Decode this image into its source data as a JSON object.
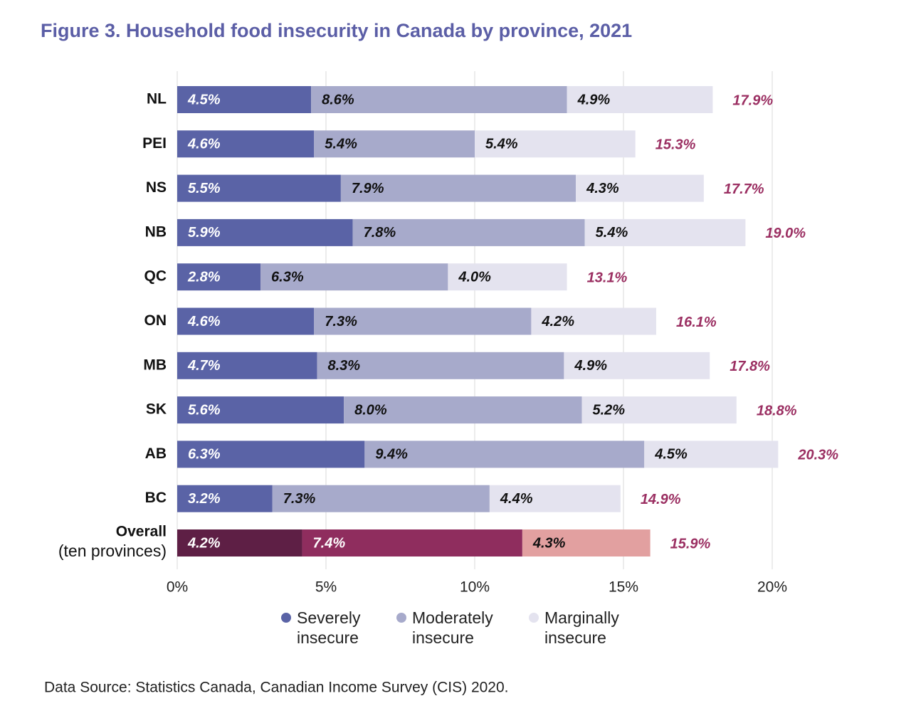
{
  "chart_data": {
    "type": "stacked-barh",
    "title": "Figure 3. Household food insecurity in Canada by province, 2021",
    "categories": [
      "NL",
      "PEI",
      "NS",
      "NB",
      "QC",
      "ON",
      "MB",
      "SK",
      "AB",
      "BC",
      "Overall"
    ],
    "category_note": "(ten provinces)",
    "series": [
      {
        "name": "Severely insecure",
        "color": "#5a63a6",
        "colors": [
          "#5a63a6",
          "#5a63a6",
          "#5a63a6",
          "#5a63a6",
          "#5a63a6",
          "#5a63a6",
          "#5a63a6",
          "#5a63a6",
          "#5a63a6",
          "#5a63a6",
          "#5e1f45"
        ],
        "values": [
          4.5,
          4.6,
          5.5,
          5.9,
          2.8,
          4.6,
          4.7,
          5.6,
          6.3,
          3.2,
          4.2
        ],
        "value_labels": [
          "4.5%",
          "4.6%",
          "5.5%",
          "5.9%",
          "2.8%",
          "4.6%",
          "4.7%",
          "5.6%",
          "6.3%",
          "3.2%",
          "4.2%"
        ]
      },
      {
        "name": "Moderately insecure",
        "color": "#a7aacb",
        "colors": [
          "#a7aacb",
          "#a7aacb",
          "#a7aacb",
          "#a7aacb",
          "#a7aacb",
          "#a7aacb",
          "#a7aacb",
          "#a7aacb",
          "#a7aacb",
          "#a7aacb",
          "#8f2d5e"
        ],
        "values": [
          8.6,
          5.4,
          7.9,
          7.8,
          6.3,
          7.3,
          8.3,
          8.0,
          9.4,
          7.3,
          7.4
        ],
        "value_labels": [
          "8.6%",
          "5.4%",
          "7.9%",
          "7.8%",
          "6.3%",
          "7.3%",
          "8.3%",
          "8.0%",
          "9.4%",
          "7.3%",
          "7.4%"
        ]
      },
      {
        "name": "Marginally insecure",
        "color": "#e4e3ef",
        "colors": [
          "#e4e3ef",
          "#e4e3ef",
          "#e4e3ef",
          "#e4e3ef",
          "#e4e3ef",
          "#e4e3ef",
          "#e4e3ef",
          "#e4e3ef",
          "#e4e3ef",
          "#e4e3ef",
          "#e2a0a0"
        ],
        "values": [
          4.9,
          5.4,
          4.3,
          5.4,
          4.0,
          4.2,
          4.9,
          5.2,
          4.5,
          4.4,
          4.3
        ],
        "value_labels": [
          "4.9%",
          "5.4%",
          "4.3%",
          "5.4%",
          "4.0%",
          "4.2%",
          "4.9%",
          "5.2%",
          "4.5%",
          "4.4%",
          "4.3%"
        ]
      }
    ],
    "totals": [
      17.9,
      15.3,
      17.7,
      19.0,
      13.1,
      16.1,
      17.8,
      18.8,
      20.3,
      14.9,
      15.9
    ],
    "total_labels": [
      "17.9%",
      "15.3%",
      "17.7%",
      "19.0%",
      "13.1%",
      "16.1%",
      "17.8%",
      "18.8%",
      "20.3%",
      "14.9%",
      "15.9%"
    ],
    "total_color": "#9b2f62",
    "xlim": [
      0,
      20
    ],
    "xticks": [
      {
        "value": 0,
        "label": "0%"
      },
      {
        "value": 5,
        "label": "5%"
      },
      {
        "value": 10,
        "label": "10%"
      },
      {
        "value": 15,
        "label": "15%"
      },
      {
        "value": 20,
        "label": "20%"
      }
    ],
    "grid": true,
    "legend": "bottom",
    "source": "Data Source: Statistics Canada, Canadian Income Survey (CIS) 2020."
  }
}
